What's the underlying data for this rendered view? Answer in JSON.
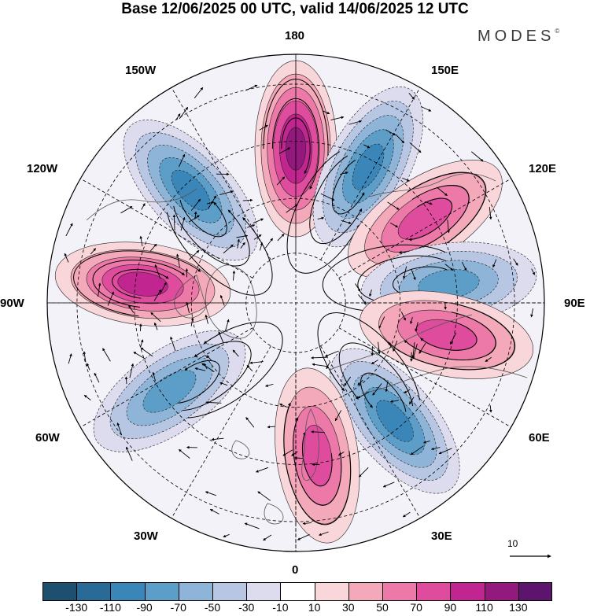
{
  "title": "Base 12/06/2025 00 UTC, valid 14/06/2025 12 UTC",
  "logo": "MODES",
  "logo_mark": "©",
  "longitude_labels": {
    "lon_180": "180",
    "lon_150e": "150E",
    "lon_120e": "120E",
    "lon_90e": "90E",
    "lon_60e": "60E",
    "lon_30e": "30E",
    "lon_0": "0",
    "lon_30w": "30W",
    "lon_60w": "60W",
    "lon_90w": "90W",
    "lon_120w": "120W",
    "lon_150w": "150W"
  },
  "vector_scale_label": "10",
  "colorbar": {
    "ticks": [
      "-130",
      "-110",
      "-90",
      "-70",
      "-50",
      "-30",
      "-10",
      "10",
      "30",
      "50",
      "70",
      "90",
      "110",
      "130"
    ],
    "colors": [
      "#1d4f6e",
      "#2a6a97",
      "#3a86b8",
      "#5d9ec8",
      "#8eb5d8",
      "#b7c7e3",
      "#dcdcee",
      "#ffffff",
      "#f9d6d9",
      "#f3a9ba",
      "#ec79a8",
      "#df4b9d",
      "#c1258f",
      "#93197d",
      "#5d146d"
    ]
  },
  "anomaly_centers": [
    {
      "lon_deg": 180,
      "value": 125
    },
    {
      "lon_deg": 152,
      "value": -100
    },
    {
      "lon_deg": 123,
      "value": 85
    },
    {
      "lon_deg": 97,
      "value": -90
    },
    {
      "lon_deg": 78,
      "value": 75
    },
    {
      "lon_deg": 40,
      "value": -95
    },
    {
      "lon_deg": 8,
      "value": 75
    },
    {
      "lon_deg": -55,
      "value": -75
    },
    {
      "lon_deg": -97,
      "value": 100
    },
    {
      "lon_deg": -137,
      "value": -110
    }
  ]
}
